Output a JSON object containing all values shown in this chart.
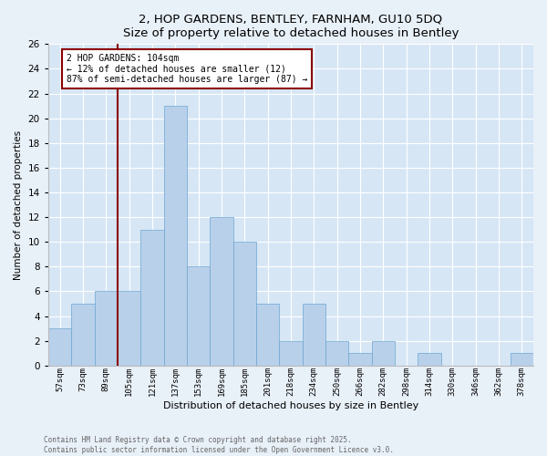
{
  "title1": "2, HOP GARDENS, BENTLEY, FARNHAM, GU10 5DQ",
  "title2": "Size of property relative to detached houses in Bentley",
  "xlabel": "Distribution of detached houses by size in Bentley",
  "ylabel": "Number of detached properties",
  "footer1": "Contains HM Land Registry data © Crown copyright and database right 2025.",
  "footer2": "Contains public sector information licensed under the Open Government Licence v3.0.",
  "annotation_line1": "2 HOP GARDENS: 104sqm",
  "annotation_line2": "← 12% of detached houses are smaller (12)",
  "annotation_line3": "87% of semi-detached houses are larger (87) →",
  "bar_color": "#b8d0ea",
  "bar_edge_color": "#6ea6d0",
  "vline_color": "#8b0000",
  "annotation_box_color": "#8b0000",
  "background_color": "#d6e6f5",
  "fig_background_color": "#e8f0f8",
  "categories": [
    "57sqm",
    "73sqm",
    "89sqm",
    "105sqm",
    "121sqm",
    "137sqm",
    "153sqm",
    "169sqm",
    "185sqm",
    "201sqm",
    "218sqm",
    "234sqm",
    "250sqm",
    "266sqm",
    "282sqm",
    "298sqm",
    "314sqm",
    "330sqm",
    "346sqm",
    "362sqm",
    "378sqm"
  ],
  "values": [
    3,
    5,
    6,
    6,
    11,
    21,
    8,
    12,
    10,
    5,
    2,
    5,
    2,
    1,
    2,
    0,
    1,
    0,
    0,
    0,
    1
  ],
  "ylim": [
    0,
    26
  ],
  "yticks": [
    0,
    2,
    4,
    6,
    8,
    10,
    12,
    14,
    16,
    18,
    20,
    22,
    24,
    26
  ],
  "vline_x_index": 3,
  "bar_width": 1.0
}
